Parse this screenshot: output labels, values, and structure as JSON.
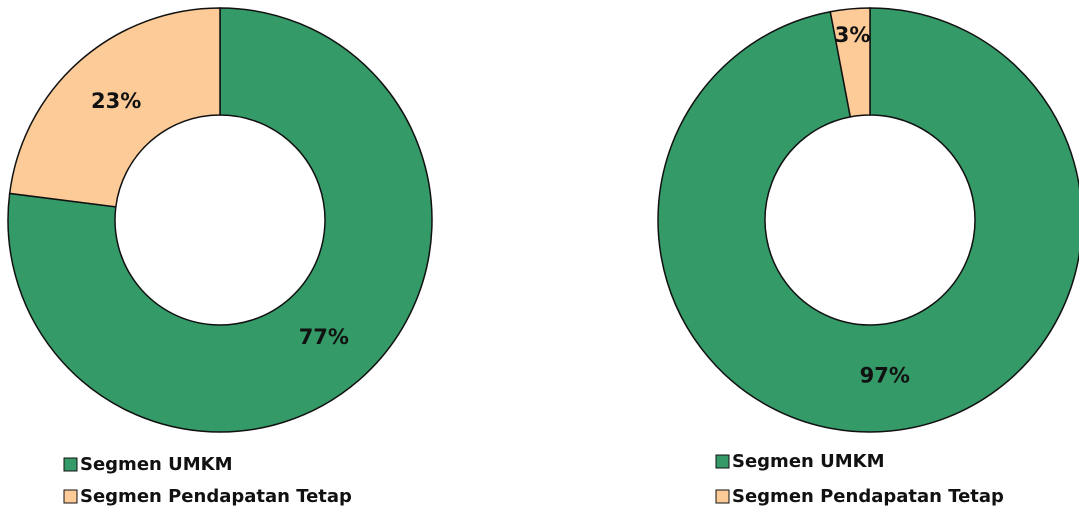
{
  "chart_data": [
    {
      "type": "pie",
      "hole": true,
      "categories": [
        "Segmen UMKM",
        "Segmen Pendapatan Tetap"
      ],
      "values": [
        77,
        23
      ],
      "value_labels": [
        "77%",
        "23%"
      ],
      "colors": [
        "#349a67",
        "#fccb98"
      ]
    },
    {
      "type": "pie",
      "hole": true,
      "categories": [
        "Segmen UMKM",
        "Segmen Pendapatan Tetap"
      ],
      "values": [
        97,
        3
      ],
      "value_labels": [
        "97%",
        "3%"
      ],
      "colors": [
        "#349a67",
        "#fccb98"
      ]
    }
  ]
}
